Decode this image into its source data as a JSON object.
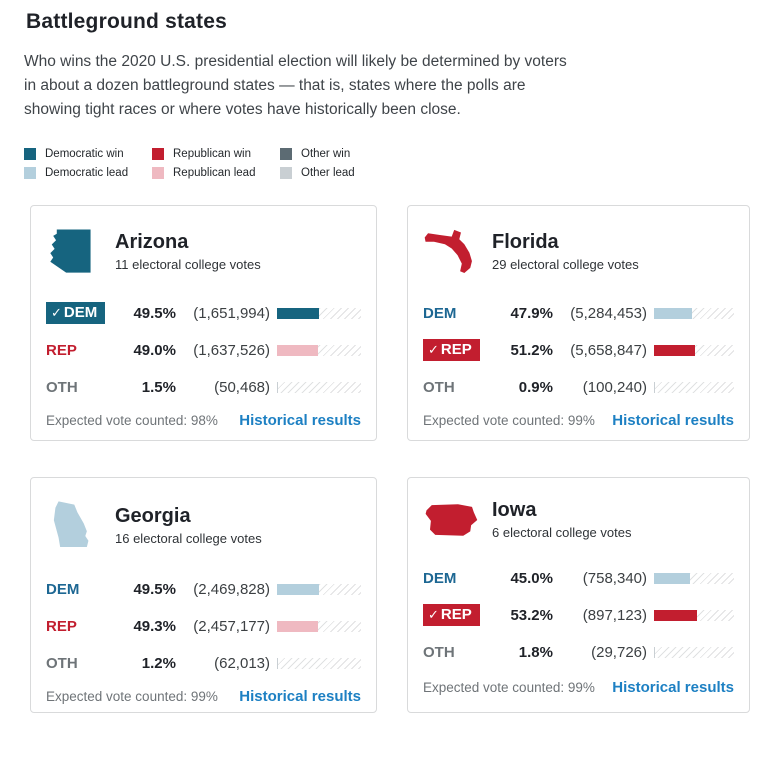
{
  "page": {
    "title": "Battleground states",
    "intro": "Who wins the 2020 U.S. presidential election will likely be determined by voters in about a dozen battleground states — that is, states where the polls are showing tight races or where votes have historically been close."
  },
  "icons": {
    "check": "✓"
  },
  "colors": {
    "dem_win": "#16647f",
    "dem_lead": "#b3cfdd",
    "rep_win": "#c21e2f",
    "rep_lead": "#efb9c1",
    "oth_win": "#5c6b73",
    "oth_lead": "#c9cfd3",
    "dem_label": "#1d6793",
    "rep_label": "#c21e2f",
    "oth_label": "#6e7478",
    "link": "#1d80c3",
    "winner_text": "#ffffff"
  },
  "legend": {
    "items": [
      {
        "label": "Democratic win",
        "color_key": "dem_win"
      },
      {
        "label": "Republican win",
        "color_key": "rep_win"
      },
      {
        "label": "Other win",
        "color_key": "oth_win"
      },
      {
        "label": "Democratic lead",
        "color_key": "dem_lead"
      },
      {
        "label": "Republican lead",
        "color_key": "rep_lead"
      },
      {
        "label": "Other lead",
        "color_key": "oth_lead"
      }
    ]
  },
  "cards": [
    {
      "state": "Arizona",
      "subtitle": "11 electoral college votes",
      "icon_color_key": "dem_win",
      "rows": [
        {
          "party": "DEM",
          "party_key": "dem",
          "winner": true,
          "pct": "49.5%",
          "pct_value": 49.5,
          "votes": "(1,651,994)",
          "bar": "dem_win"
        },
        {
          "party": "REP",
          "party_key": "rep",
          "winner": false,
          "pct": "49.0%",
          "pct_value": 49.0,
          "votes": "(1,637,526)",
          "bar": "rep_lead"
        },
        {
          "party": "OTH",
          "party_key": "oth",
          "winner": false,
          "pct": "1.5%",
          "pct_value": 1.5,
          "votes": "(50,468)",
          "bar": "oth_lead"
        }
      ],
      "expected": "Expected vote counted: 98%",
      "link": "Historical results"
    },
    {
      "state": "Florida",
      "subtitle": "29 electoral college votes",
      "icon_color_key": "rep_win",
      "rows": [
        {
          "party": "DEM",
          "party_key": "dem",
          "winner": false,
          "pct": "47.9%",
          "pct_value": 47.9,
          "votes": "(5,284,453)",
          "bar": "dem_lead"
        },
        {
          "party": "REP",
          "party_key": "rep",
          "winner": true,
          "pct": "51.2%",
          "pct_value": 51.2,
          "votes": "(5,658,847)",
          "bar": "rep_win"
        },
        {
          "party": "OTH",
          "party_key": "oth",
          "winner": false,
          "pct": "0.9%",
          "pct_value": 0.9,
          "votes": "(100,240)",
          "bar": "oth_lead"
        }
      ],
      "expected": "Expected vote counted: 99%",
      "link": "Historical results"
    },
    {
      "state": "Georgia",
      "subtitle": "16 electoral college votes",
      "icon_color_key": "dem_lead",
      "rows": [
        {
          "party": "DEM",
          "party_key": "dem",
          "winner": false,
          "pct": "49.5%",
          "pct_value": 49.5,
          "votes": "(2,469,828)",
          "bar": "dem_lead"
        },
        {
          "party": "REP",
          "party_key": "rep",
          "winner": false,
          "pct": "49.3%",
          "pct_value": 49.3,
          "votes": "(2,457,177)",
          "bar": "rep_lead"
        },
        {
          "party": "OTH",
          "party_key": "oth",
          "winner": false,
          "pct": "1.2%",
          "pct_value": 1.2,
          "votes": "(62,013)",
          "bar": "oth_lead"
        }
      ],
      "expected": "Expected vote counted: 99%",
      "link": "Historical results"
    },
    {
      "state": "Iowa",
      "subtitle": "6 electoral college votes",
      "icon_color_key": "rep_win",
      "rows": [
        {
          "party": "DEM",
          "party_key": "dem",
          "winner": false,
          "pct": "45.0%",
          "pct_value": 45.0,
          "votes": "(758,340)",
          "bar": "dem_lead"
        },
        {
          "party": "REP",
          "party_key": "rep",
          "winner": true,
          "pct": "53.2%",
          "pct_value": 53.2,
          "votes": "(897,123)",
          "bar": "rep_win"
        },
        {
          "party": "OTH",
          "party_key": "oth",
          "winner": false,
          "pct": "1.8%",
          "pct_value": 1.8,
          "votes": "(29,726)",
          "bar": "oth_lead"
        }
      ],
      "expected": "Expected vote counted: 99%",
      "link": "Historical results"
    }
  ]
}
